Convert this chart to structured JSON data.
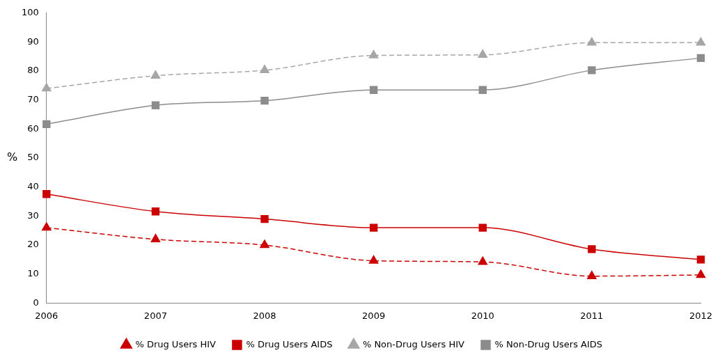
{
  "chart_data": {
    "type": "line",
    "ylabel": "%",
    "categories": [
      "2006",
      "2007",
      "2008",
      "2009",
      "2010",
      "2011",
      "2012"
    ],
    "ylim": [
      0,
      100
    ],
    "yticks": [
      0,
      10,
      20,
      30,
      40,
      50,
      60,
      70,
      80,
      90,
      100
    ],
    "grid": false,
    "legend": "bottom",
    "series": [
      {
        "name": "% Drug Users HIV",
        "color": "#cc0000",
        "marker": "triangle",
        "line_style": "dashed",
        "values": [
          26,
          22,
          20,
          14.6,
          14.2,
          9.3,
          9.7
        ]
      },
      {
        "name": "% Drug Users AIDS",
        "color": "#cc0000",
        "marker": "square",
        "line_style": "solid",
        "values": [
          37.6,
          31.6,
          29,
          26,
          26,
          18.6,
          15
        ]
      },
      {
        "name": "% Non-Drug Users HIV",
        "color": "#a6a6a6",
        "marker": "triangle",
        "line_style": "dashed",
        "values": [
          74,
          78.4,
          80.3,
          85.4,
          85.6,
          89.8,
          89.8
        ]
      },
      {
        "name": "% Non-Drug Users AIDS",
        "color": "#8c8c8c",
        "marker": "square",
        "line_style": "solid",
        "values": [
          61.7,
          68.2,
          69.8,
          73.5,
          73.5,
          80.3,
          84.5
        ]
      }
    ]
  }
}
